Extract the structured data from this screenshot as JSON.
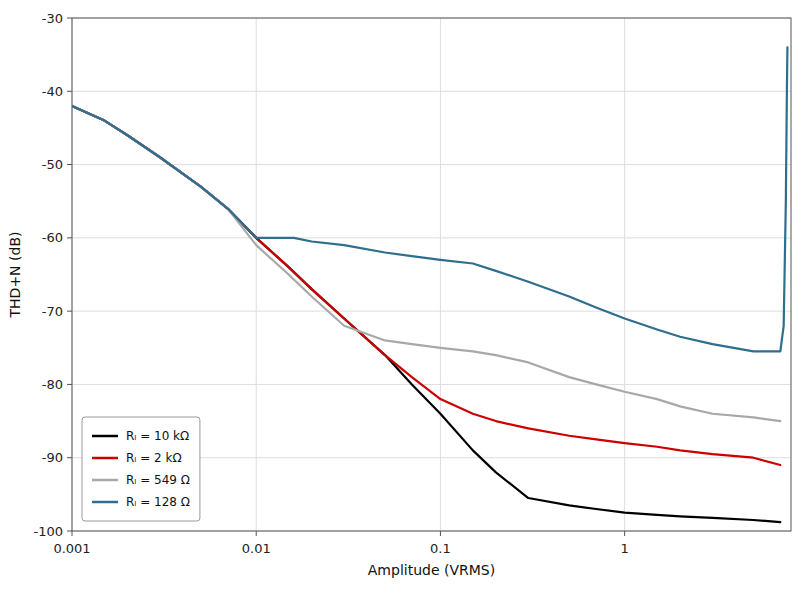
{
  "chart_data": {
    "type": "line",
    "x_label": "Amplitude (VRMS)",
    "y_label": "THD+N (dB)",
    "log": "x",
    "xlim": [
      0.001,
      8.0
    ],
    "xticks": [
      0.001,
      0.01,
      0.1,
      1
    ],
    "ylim": [
      -100,
      -30
    ],
    "yticks": [
      -100,
      -90,
      -80,
      -70,
      -60,
      -50,
      -40,
      -30
    ],
    "grid": true,
    "legend": "lower left",
    "series": [
      {
        "name": "Rₗ = 10 kΩ",
        "color": "#000000",
        "x": [
          0.001,
          0.0015,
          0.002,
          0.003,
          0.005,
          0.007,
          0.01,
          0.015,
          0.02,
          0.03,
          0.05,
          0.07,
          0.1,
          0.15,
          0.2,
          0.3,
          0.5,
          0.7,
          1.0,
          1.5,
          2.0,
          3.0,
          5.0,
          7.0
        ],
        "values": [
          -42,
          -44,
          -46,
          -49,
          -53,
          -56,
          -60,
          -64,
          -67,
          -71,
          -76,
          -80,
          -84,
          -89,
          -92,
          -95.5,
          -96.5,
          -97,
          -97.5,
          -97.8,
          -98,
          -98.2,
          -98.5,
          -98.8
        ]
      },
      {
        "name": "Rₗ = 2 kΩ",
        "color": "#cc0000",
        "x": [
          0.001,
          0.0015,
          0.002,
          0.003,
          0.005,
          0.007,
          0.01,
          0.015,
          0.02,
          0.03,
          0.05,
          0.07,
          0.1,
          0.15,
          0.2,
          0.3,
          0.5,
          0.7,
          1.0,
          1.5,
          2.0,
          3.0,
          5.0,
          7.0
        ],
        "values": [
          -42,
          -44,
          -46,
          -49,
          -53,
          -56,
          -60,
          -64,
          -67,
          -71,
          -76,
          -79,
          -82,
          -84,
          -85,
          -86,
          -87,
          -87.5,
          -88,
          -88.5,
          -89,
          -89.5,
          -90,
          -91
        ]
      },
      {
        "name": "Rₗ = 549 Ω",
        "color": "#a8a8a8",
        "x": [
          0.001,
          0.0015,
          0.002,
          0.003,
          0.005,
          0.007,
          0.01,
          0.015,
          0.02,
          0.03,
          0.05,
          0.07,
          0.1,
          0.15,
          0.2,
          0.3,
          0.5,
          0.7,
          1.0,
          1.5,
          2.0,
          3.0,
          5.0,
          7.0
        ],
        "values": [
          -42,
          -44,
          -46,
          -49,
          -53,
          -56,
          -61,
          -65,
          -68,
          -72,
          -74,
          -74.5,
          -75,
          -75.5,
          -76,
          -77,
          -79,
          -80,
          -81,
          -82,
          -83,
          -84,
          -84.5,
          -85
        ]
      },
      {
        "name": "Rₗ = 128 Ω",
        "color": "#2e6e8e",
        "x": [
          0.001,
          0.0015,
          0.002,
          0.003,
          0.005,
          0.007,
          0.01,
          0.013,
          0.016,
          0.02,
          0.03,
          0.05,
          0.07,
          0.1,
          0.15,
          0.2,
          0.3,
          0.5,
          0.7,
          1.0,
          1.5,
          2.0,
          3.0,
          5.0,
          6.5,
          7.0,
          7.3,
          7.5,
          7.6,
          7.65
        ],
        "values": [
          -42,
          -44,
          -46,
          -49,
          -53,
          -56,
          -60,
          -60,
          -60,
          -60.5,
          -61,
          -62,
          -62.5,
          -63,
          -63.5,
          -64.5,
          -66,
          -68,
          -69.5,
          -71,
          -72.5,
          -73.5,
          -74.5,
          -75.5,
          -75.5,
          -75.5,
          -72,
          -55,
          -40,
          -34
        ]
      }
    ]
  }
}
